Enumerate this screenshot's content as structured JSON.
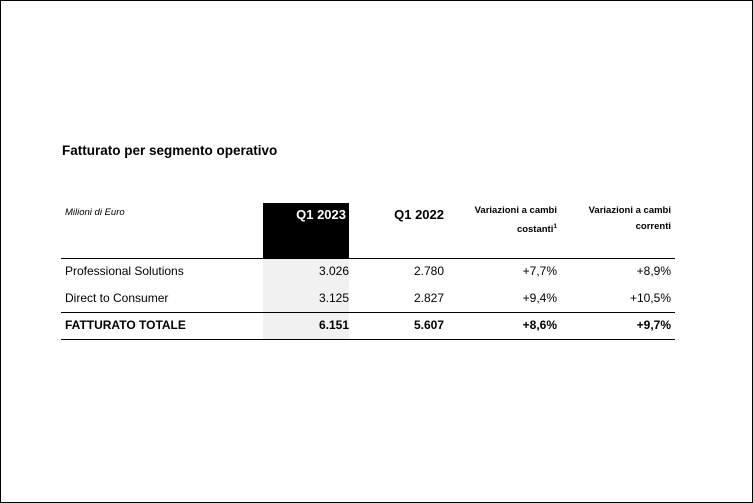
{
  "title": "Fatturato per segmento operativo",
  "table": {
    "unit_label": "Milioni di Euro",
    "headers": {
      "q1_2023": "Q1 2023",
      "q1_2022": "Q1 2022",
      "var_const_line1": "Variazioni a cambi",
      "var_const_line2": "costanti",
      "var_const_sup": "1",
      "var_curr_line1": "Variazioni a cambi",
      "var_curr_line2": "correnti"
    },
    "rows": [
      {
        "label": "Professional Solutions",
        "q1_2023": "3.026",
        "q1_2022": "2.780",
        "var_const": "+7,7%",
        "var_curr": "+8,9%"
      },
      {
        "label": "Direct to Consumer",
        "q1_2023": "3.125",
        "q1_2022": "2.827",
        "var_const": "+9,4%",
        "var_curr": "+10,5%"
      },
      {
        "label": "FATTURATO TOTALE",
        "q1_2023": "6.151",
        "q1_2022": "5.607",
        "var_const": "+8,6%",
        "var_curr": "+9,7%"
      }
    ]
  }
}
